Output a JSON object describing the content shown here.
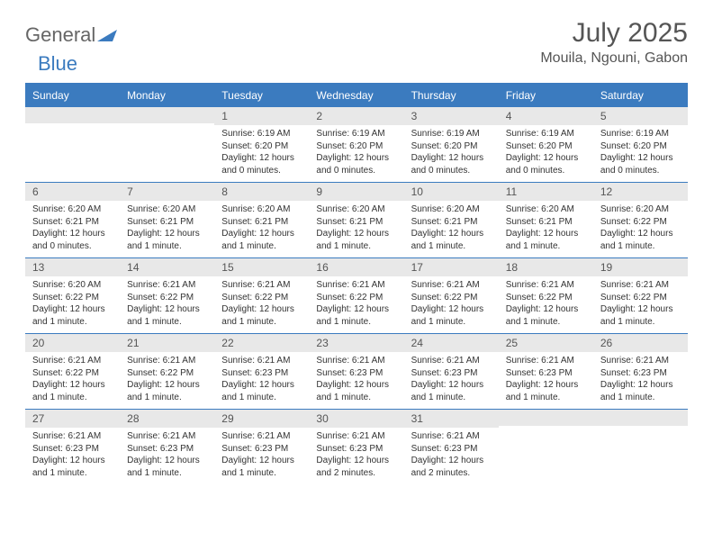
{
  "logo": {
    "general": "General",
    "blue": "Blue",
    "tri_color": "#3b7bbf"
  },
  "title": "July 2025",
  "location": "Mouila, Ngouni, Gabon",
  "colors": {
    "header_bg": "#3b7bbf",
    "header_text": "#ffffff",
    "daynum_bg": "#e8e8e8",
    "text": "#333333",
    "border": "#3b7bbf"
  },
  "day_headers": [
    "Sunday",
    "Monday",
    "Tuesday",
    "Wednesday",
    "Thursday",
    "Friday",
    "Saturday"
  ],
  "weeks": [
    [
      {
        "n": "",
        "lines": []
      },
      {
        "n": "",
        "lines": []
      },
      {
        "n": "1",
        "lines": [
          "Sunrise: 6:19 AM",
          "Sunset: 6:20 PM",
          "Daylight: 12 hours",
          "and 0 minutes."
        ]
      },
      {
        "n": "2",
        "lines": [
          "Sunrise: 6:19 AM",
          "Sunset: 6:20 PM",
          "Daylight: 12 hours",
          "and 0 minutes."
        ]
      },
      {
        "n": "3",
        "lines": [
          "Sunrise: 6:19 AM",
          "Sunset: 6:20 PM",
          "Daylight: 12 hours",
          "and 0 minutes."
        ]
      },
      {
        "n": "4",
        "lines": [
          "Sunrise: 6:19 AM",
          "Sunset: 6:20 PM",
          "Daylight: 12 hours",
          "and 0 minutes."
        ]
      },
      {
        "n": "5",
        "lines": [
          "Sunrise: 6:19 AM",
          "Sunset: 6:20 PM",
          "Daylight: 12 hours",
          "and 0 minutes."
        ]
      }
    ],
    [
      {
        "n": "6",
        "lines": [
          "Sunrise: 6:20 AM",
          "Sunset: 6:21 PM",
          "Daylight: 12 hours",
          "and 0 minutes."
        ]
      },
      {
        "n": "7",
        "lines": [
          "Sunrise: 6:20 AM",
          "Sunset: 6:21 PM",
          "Daylight: 12 hours",
          "and 1 minute."
        ]
      },
      {
        "n": "8",
        "lines": [
          "Sunrise: 6:20 AM",
          "Sunset: 6:21 PM",
          "Daylight: 12 hours",
          "and 1 minute."
        ]
      },
      {
        "n": "9",
        "lines": [
          "Sunrise: 6:20 AM",
          "Sunset: 6:21 PM",
          "Daylight: 12 hours",
          "and 1 minute."
        ]
      },
      {
        "n": "10",
        "lines": [
          "Sunrise: 6:20 AM",
          "Sunset: 6:21 PM",
          "Daylight: 12 hours",
          "and 1 minute."
        ]
      },
      {
        "n": "11",
        "lines": [
          "Sunrise: 6:20 AM",
          "Sunset: 6:21 PM",
          "Daylight: 12 hours",
          "and 1 minute."
        ]
      },
      {
        "n": "12",
        "lines": [
          "Sunrise: 6:20 AM",
          "Sunset: 6:22 PM",
          "Daylight: 12 hours",
          "and 1 minute."
        ]
      }
    ],
    [
      {
        "n": "13",
        "lines": [
          "Sunrise: 6:20 AM",
          "Sunset: 6:22 PM",
          "Daylight: 12 hours",
          "and 1 minute."
        ]
      },
      {
        "n": "14",
        "lines": [
          "Sunrise: 6:21 AM",
          "Sunset: 6:22 PM",
          "Daylight: 12 hours",
          "and 1 minute."
        ]
      },
      {
        "n": "15",
        "lines": [
          "Sunrise: 6:21 AM",
          "Sunset: 6:22 PM",
          "Daylight: 12 hours",
          "and 1 minute."
        ]
      },
      {
        "n": "16",
        "lines": [
          "Sunrise: 6:21 AM",
          "Sunset: 6:22 PM",
          "Daylight: 12 hours",
          "and 1 minute."
        ]
      },
      {
        "n": "17",
        "lines": [
          "Sunrise: 6:21 AM",
          "Sunset: 6:22 PM",
          "Daylight: 12 hours",
          "and 1 minute."
        ]
      },
      {
        "n": "18",
        "lines": [
          "Sunrise: 6:21 AM",
          "Sunset: 6:22 PM",
          "Daylight: 12 hours",
          "and 1 minute."
        ]
      },
      {
        "n": "19",
        "lines": [
          "Sunrise: 6:21 AM",
          "Sunset: 6:22 PM",
          "Daylight: 12 hours",
          "and 1 minute."
        ]
      }
    ],
    [
      {
        "n": "20",
        "lines": [
          "Sunrise: 6:21 AM",
          "Sunset: 6:22 PM",
          "Daylight: 12 hours",
          "and 1 minute."
        ]
      },
      {
        "n": "21",
        "lines": [
          "Sunrise: 6:21 AM",
          "Sunset: 6:22 PM",
          "Daylight: 12 hours",
          "and 1 minute."
        ]
      },
      {
        "n": "22",
        "lines": [
          "Sunrise: 6:21 AM",
          "Sunset: 6:23 PM",
          "Daylight: 12 hours",
          "and 1 minute."
        ]
      },
      {
        "n": "23",
        "lines": [
          "Sunrise: 6:21 AM",
          "Sunset: 6:23 PM",
          "Daylight: 12 hours",
          "and 1 minute."
        ]
      },
      {
        "n": "24",
        "lines": [
          "Sunrise: 6:21 AM",
          "Sunset: 6:23 PM",
          "Daylight: 12 hours",
          "and 1 minute."
        ]
      },
      {
        "n": "25",
        "lines": [
          "Sunrise: 6:21 AM",
          "Sunset: 6:23 PM",
          "Daylight: 12 hours",
          "and 1 minute."
        ]
      },
      {
        "n": "26",
        "lines": [
          "Sunrise: 6:21 AM",
          "Sunset: 6:23 PM",
          "Daylight: 12 hours",
          "and 1 minute."
        ]
      }
    ],
    [
      {
        "n": "27",
        "lines": [
          "Sunrise: 6:21 AM",
          "Sunset: 6:23 PM",
          "Daylight: 12 hours",
          "and 1 minute."
        ]
      },
      {
        "n": "28",
        "lines": [
          "Sunrise: 6:21 AM",
          "Sunset: 6:23 PM",
          "Daylight: 12 hours",
          "and 1 minute."
        ]
      },
      {
        "n": "29",
        "lines": [
          "Sunrise: 6:21 AM",
          "Sunset: 6:23 PM",
          "Daylight: 12 hours",
          "and 1 minute."
        ]
      },
      {
        "n": "30",
        "lines": [
          "Sunrise: 6:21 AM",
          "Sunset: 6:23 PM",
          "Daylight: 12 hours",
          "and 2 minutes."
        ]
      },
      {
        "n": "31",
        "lines": [
          "Sunrise: 6:21 AM",
          "Sunset: 6:23 PM",
          "Daylight: 12 hours",
          "and 2 minutes."
        ]
      },
      {
        "n": "",
        "lines": []
      },
      {
        "n": "",
        "lines": []
      }
    ]
  ]
}
